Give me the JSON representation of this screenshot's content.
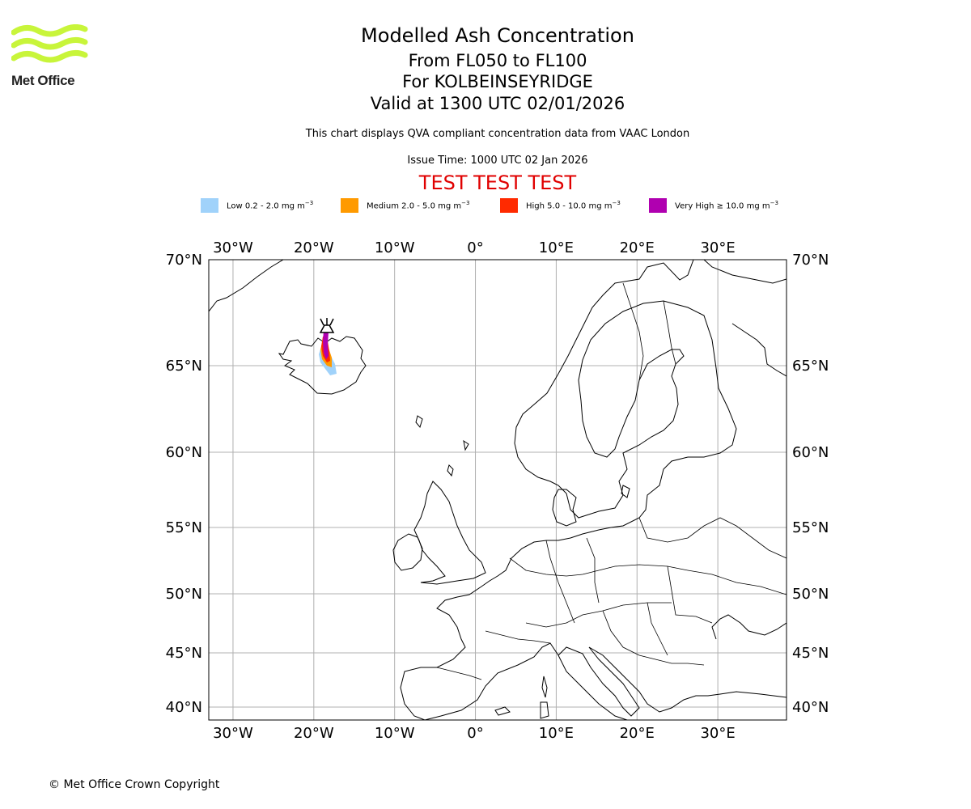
{
  "brand": {
    "name": "Met Office",
    "logo_color": "#c8f53a"
  },
  "header": {
    "title": "Modelled Ash Concentration",
    "flight_levels": "From FL050 to FL100",
    "volcano": "For KOLBEINSEYRIDGE",
    "valid_time": "Valid at 1300 UTC 02/01/2026",
    "note": "This chart displays QVA compliant concentration data from VAAC London",
    "issue_time": "Issue Time: 1000 UTC 02 Jan 2026",
    "test_banner": "TEST TEST TEST"
  },
  "legend": [
    {
      "label": "Low 0.2 - 2.0 mg m",
      "exp": "−3",
      "color": "#a0d2fa"
    },
    {
      "label": "Medium 2.0 - 5.0 mg m",
      "exp": "−3",
      "color": "#ff9a00"
    },
    {
      "label": "High 5.0 - 10.0 mg m",
      "exp": "−3",
      "color": "#ff2a00"
    },
    {
      "label": "Very High  ≥  10.0 mg m",
      "exp": "−3",
      "color": "#b000b0"
    }
  ],
  "map": {
    "lon_range": [
      -33,
      38.5
    ],
    "lat_range": [
      39.2,
      70
    ],
    "lon_ticks": [
      {
        "value": -30,
        "label": "30°W"
      },
      {
        "value": -20,
        "label": "20°W"
      },
      {
        "value": -10,
        "label": "10°W"
      },
      {
        "value": 0,
        "label": "0°"
      },
      {
        "value": 10,
        "label": "10°E"
      },
      {
        "value": 20,
        "label": "20°E"
      },
      {
        "value": 30,
        "label": "30°E"
      }
    ],
    "lat_ticks": [
      {
        "value": 70,
        "label": "70°N"
      },
      {
        "value": 65,
        "label": "65°N"
      },
      {
        "value": 60,
        "label": "60°N"
      },
      {
        "value": 55,
        "label": "55°N"
      },
      {
        "value": 50,
        "label": "50°N"
      },
      {
        "value": 45,
        "label": "45°N"
      },
      {
        "value": 40,
        "label": "40°N"
      }
    ],
    "volcano_location": {
      "lon": -18.5,
      "lat": 66.9
    }
  },
  "footer": {
    "copyright": "© Met Office Crown Copyright"
  }
}
